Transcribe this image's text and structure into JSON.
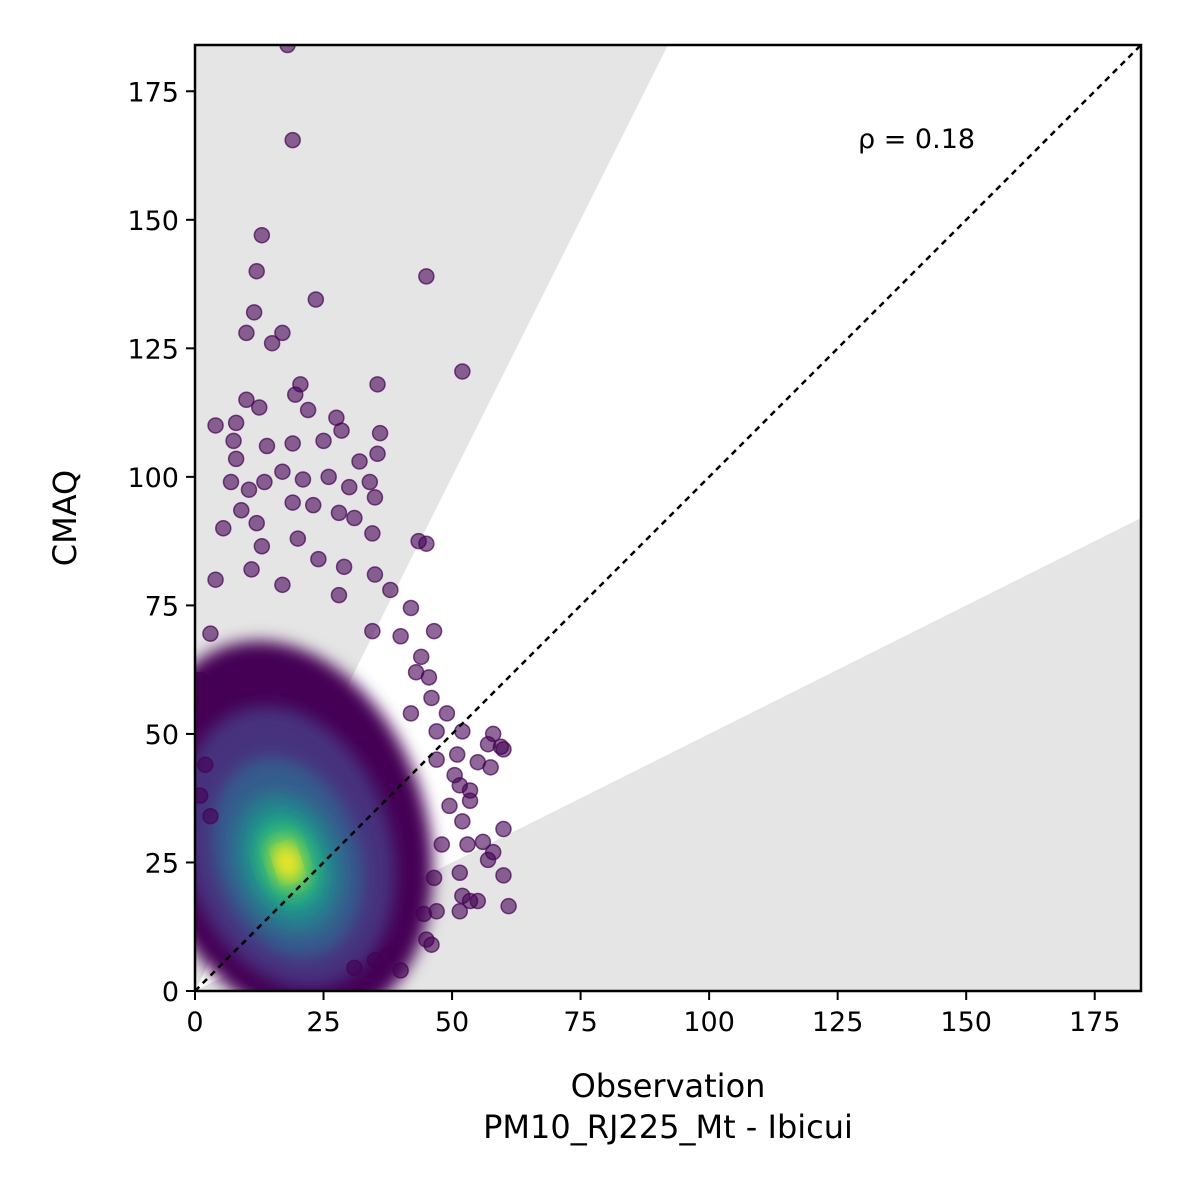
{
  "chart_data": {
    "type": "scatter",
    "xlabel": "Observation",
    "xlabel2": "PM10_RJ225_Mt - Ibicui",
    "ylabel": "CMAQ",
    "annotation": "ρ = 0.18",
    "xlim": [
      0,
      184
    ],
    "ylim": [
      0,
      184
    ],
    "xticks": [
      "0",
      "25",
      "50",
      "75",
      "100",
      "125",
      "150",
      "175"
    ],
    "yticks": [
      "0",
      "25",
      "50",
      "75",
      "100",
      "125",
      "150",
      "175"
    ],
    "tick_values": [
      0,
      25,
      50,
      75,
      100,
      125,
      150,
      175
    ],
    "reference_line": "1:1",
    "band_upper_slope": 2,
    "band_lower_slope": 0.5,
    "band_color": "#e5e5e5",
    "colormap": "viridis",
    "point_alpha": 0.6,
    "grid": false,
    "density_center": [
      18,
      25
    ],
    "points": [
      [
        18,
        184
      ],
      [
        19,
        165.5
      ],
      [
        13,
        147
      ],
      [
        12,
        140
      ],
      [
        11.5,
        132
      ],
      [
        10,
        128
      ],
      [
        17,
        128
      ],
      [
        23.5,
        134.5
      ],
      [
        15,
        126
      ],
      [
        45,
        139
      ],
      [
        52,
        120.5
      ],
      [
        35.5,
        118
      ],
      [
        20.5,
        118
      ],
      [
        19.5,
        116
      ],
      [
        22,
        113
      ],
      [
        10,
        115
      ],
      [
        12.5,
        113.5
      ],
      [
        27.5,
        111.5
      ],
      [
        4,
        110
      ],
      [
        8,
        110.5
      ],
      [
        28.5,
        109
      ],
      [
        36,
        108.5
      ],
      [
        7.5,
        107
      ],
      [
        14,
        106
      ],
      [
        19,
        106.5
      ],
      [
        25,
        107
      ],
      [
        32,
        103
      ],
      [
        35.5,
        104.5
      ],
      [
        8,
        103.5
      ],
      [
        17,
        101
      ],
      [
        26,
        100
      ],
      [
        34,
        99
      ],
      [
        7,
        99
      ],
      [
        13.5,
        99
      ],
      [
        21,
        99.5
      ],
      [
        10.5,
        97.5
      ],
      [
        30,
        98
      ],
      [
        35,
        96
      ],
      [
        9,
        93.5
      ],
      [
        19,
        95
      ],
      [
        23,
        94.5
      ],
      [
        28,
        93
      ],
      [
        31,
        92
      ],
      [
        5.5,
        90
      ],
      [
        12,
        91
      ],
      [
        34.5,
        89
      ],
      [
        43.5,
        87.5
      ],
      [
        45,
        87
      ],
      [
        13,
        86.5
      ],
      [
        20,
        88
      ],
      [
        24,
        84
      ],
      [
        29,
        82.5
      ],
      [
        11,
        82
      ],
      [
        35,
        81
      ],
      [
        4,
        80
      ],
      [
        17,
        79
      ],
      [
        38,
        78
      ],
      [
        28,
        77
      ],
      [
        42,
        74.5
      ],
      [
        46.5,
        70
      ],
      [
        3,
        69.5
      ],
      [
        34.5,
        70
      ],
      [
        40,
        69
      ],
      [
        44,
        65
      ],
      [
        45.5,
        61
      ],
      [
        43,
        62
      ],
      [
        1,
        60.5
      ],
      [
        3,
        59.5
      ],
      [
        46,
        57
      ],
      [
        1.5,
        55.5
      ],
      [
        49,
        54
      ],
      [
        42,
        54
      ],
      [
        47,
        50.5
      ],
      [
        52,
        50.5
      ],
      [
        58,
        50
      ],
      [
        57,
        48
      ],
      [
        59.5,
        47.5
      ],
      [
        60,
        47
      ],
      [
        51,
        46
      ],
      [
        47,
        45
      ],
      [
        55,
        44.5
      ],
      [
        57.5,
        43.5
      ],
      [
        50.5,
        42
      ],
      [
        51.5,
        40
      ],
      [
        53.5,
        39
      ],
      [
        53.5,
        37
      ],
      [
        49.5,
        36
      ],
      [
        52,
        33
      ],
      [
        56,
        29
      ],
      [
        48,
        28.5
      ],
      [
        53,
        28.5
      ],
      [
        60,
        31.5
      ],
      [
        58,
        27
      ],
      [
        57,
        25.5
      ],
      [
        60,
        22.5
      ],
      [
        51.5,
        23
      ],
      [
        46.5,
        22
      ],
      [
        52,
        18.5
      ],
      [
        53.5,
        17.5
      ],
      [
        55,
        17.5
      ],
      [
        61,
        16.5
      ],
      [
        51.5,
        15.5
      ],
      [
        47,
        15.5
      ],
      [
        44.5,
        15
      ],
      [
        45,
        10
      ],
      [
        46,
        9
      ],
      [
        40,
        4
      ],
      [
        37.5,
        7
      ],
      [
        35,
        6
      ],
      [
        31,
        4.5
      ],
      [
        2,
        44
      ],
      [
        1,
        38
      ],
      [
        3,
        34
      ]
    ]
  }
}
